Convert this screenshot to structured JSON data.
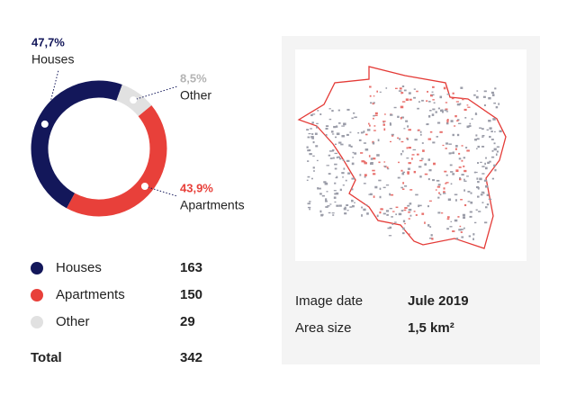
{
  "chart_data": {
    "type": "donut",
    "categories": [
      "Houses",
      "Apartments",
      "Other"
    ],
    "values": [
      47.7,
      43.9,
      8.5
    ],
    "value_labels": [
      "47,7%",
      "43,9%",
      "8,5%"
    ],
    "colors": [
      "#13175a",
      "#e8403a",
      "#e1e1e1"
    ],
    "label_colors": [
      "#13175a",
      "#e8403a",
      "#b3b3b3"
    ],
    "counts": [
      163,
      150,
      29
    ],
    "total_label": "Total",
    "total": 342
  },
  "info": {
    "rows": [
      [
        "Image date",
        "Jule 2019"
      ],
      [
        "Area size",
        "1,5 km²"
      ]
    ]
  }
}
